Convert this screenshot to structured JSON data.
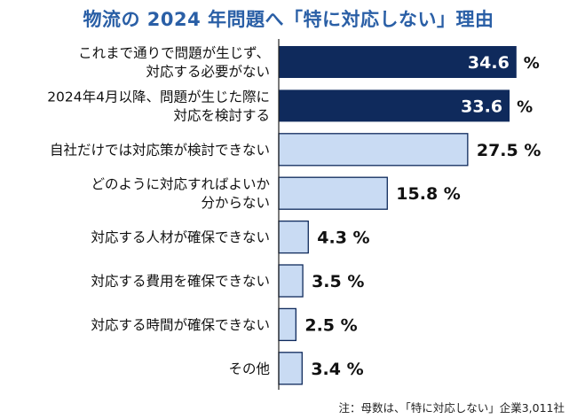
{
  "chart_data": {
    "type": "bar",
    "orientation": "horizontal",
    "title": "物流の 2024 年問題へ「特に対応しない」理由",
    "categories": [
      [
        "これまで通りで問題が生じず、",
        "対応する必要がない"
      ],
      [
        "2024年4月以降、問題が生じた際に",
        "対応を検討する"
      ],
      [
        "自社だけでは対応策が検討できない"
      ],
      [
        "どのように対応すればよいか",
        "分からない"
      ],
      [
        "対応する人材が確保できない"
      ],
      [
        "対応する費用を確保できない"
      ],
      [
        "対応する時間が確保できない"
      ],
      [
        "その他"
      ]
    ],
    "values": [
      34.6,
      33.6,
      27.5,
      15.8,
      4.3,
      3.5,
      2.5,
      3.4
    ],
    "value_labels": [
      "34.6",
      "33.6",
      "27.5",
      "15.8",
      "4.3",
      "3.5",
      "2.5",
      "3.4"
    ],
    "unit": "%",
    "highlight_count": 2,
    "colors": {
      "highlight_fill": "#0f2a5c",
      "normal_fill": "#c9dbf3",
      "normal_stroke": "#0f2a5c",
      "title": "#2a5fa6"
    },
    "note": "注：母数は、「特に対応しない」企業3,011社"
  }
}
